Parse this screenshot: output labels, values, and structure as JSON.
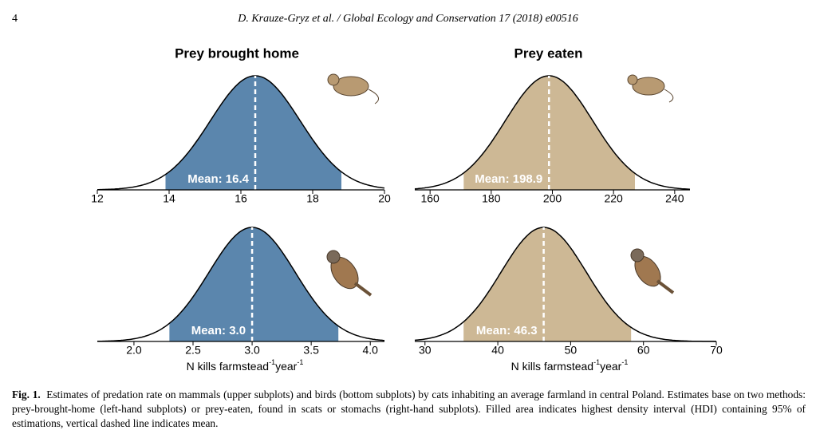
{
  "header": {
    "page_number": "4",
    "journal": "D. Krauze-Gryz et al. / Global Ecology and Conservation 17 (2018) e00516"
  },
  "figure": {
    "panels": [
      {
        "title": "Prey brought home",
        "xlim": [
          12,
          20
        ],
        "xticks": [
          12,
          14,
          16,
          18,
          20
        ],
        "mean": 16.4,
        "mean_label": "Mean: 16.4",
        "hdi": [
          13.9,
          18.8
        ],
        "color": "#5b86ad"
      },
      {
        "title": "Prey eaten",
        "xlim": [
          155,
          245
        ],
        "xticks": [
          160,
          180,
          200,
          220,
          240
        ],
        "mean": 198.9,
        "mean_label": "Mean: 198.9",
        "hdi": [
          171,
          227
        ],
        "color": "#cdb895"
      },
      {
        "xlim": [
          1.69,
          4.12
        ],
        "xticks": [
          {
            "value": 2,
            "label": "2.0"
          },
          {
            "value": 2.5,
            "label": "2.5"
          },
          {
            "value": 3,
            "label": "3.0"
          },
          {
            "value": 3.5,
            "label": "3.5"
          },
          {
            "value": 4,
            "label": "4.0"
          }
        ],
        "mean": 3.0,
        "mean_label": "Mean: 3.0",
        "hdi": [
          2.3,
          3.73
        ],
        "color": "#5b86ad",
        "x_label": [
          "N kills farmstead",
          "-1",
          "year",
          "-1"
        ]
      },
      {
        "xlim": [
          28.6,
          70
        ],
        "xticks": [
          30,
          40,
          50,
          60,
          70
        ],
        "mean": 46.3,
        "mean_label": "Mean: 46.3",
        "hdi": [
          35.3,
          58.3
        ],
        "color": "#cdb895",
        "x_label": [
          "N kills farmstead",
          "-1",
          "year",
          "-1"
        ]
      }
    ]
  },
  "caption": {
    "label": "Fig. 1.",
    "text": "Estimates of predation rate on mammals (upper subplots) and birds (bottom subplots) by cats inhabiting an average farmland in central Poland. Estimates base on two methods: prey-brought-home (left-hand subplots) or prey-eaten, found in scats or stomachs (right-hand subplots). Filled area indicates highest density interval (HDI) containing 95% of estimations, vertical dashed line indicates mean."
  }
}
